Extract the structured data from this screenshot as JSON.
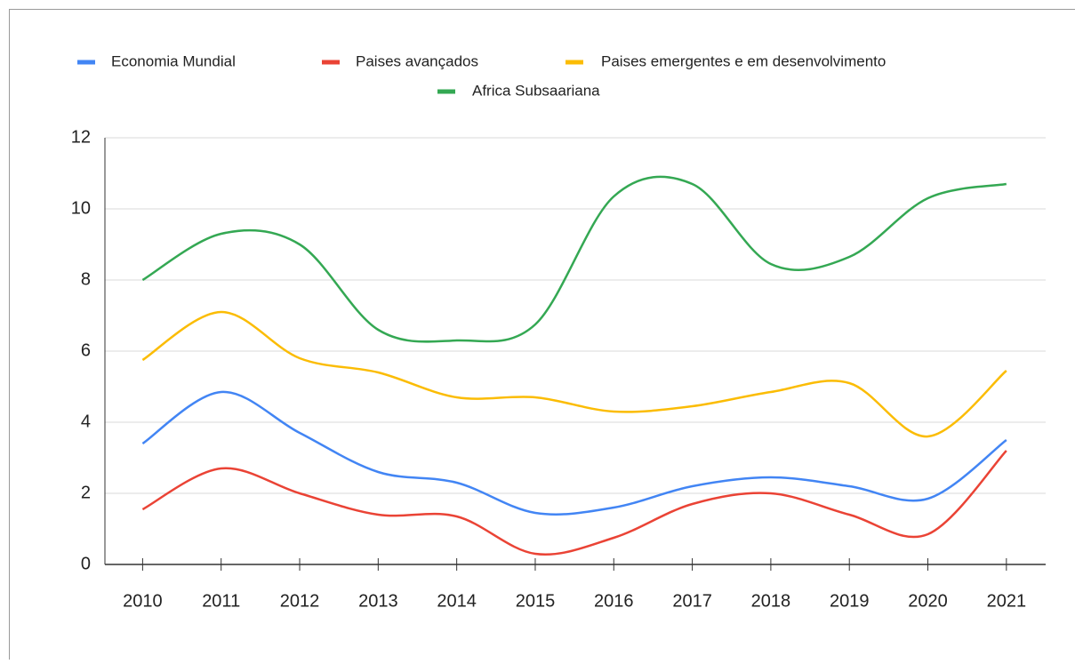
{
  "chart_data": {
    "type": "line",
    "x": [
      2010,
      2011,
      2012,
      2013,
      2014,
      2015,
      2016,
      2017,
      2018,
      2019,
      2020,
      2021
    ],
    "xlim": [
      2009.52,
      2021.5
    ],
    "xticks": [
      2010,
      2011,
      2012,
      2013,
      2014,
      2015,
      2016,
      2017,
      2018,
      2019,
      2020,
      2021
    ],
    "ylim": [
      0,
      12
    ],
    "yticks": [
      0,
      2,
      4,
      6,
      8,
      10,
      12
    ],
    "grid": true,
    "legend": "top",
    "series": [
      {
        "name": "Economia Mundial",
        "color": "#4285f4",
        "values": [
          3.4,
          4.85,
          3.7,
          2.6,
          2.3,
          1.45,
          1.6,
          2.2,
          2.45,
          2.2,
          1.85,
          3.5
        ]
      },
      {
        "name": "Paises avançados",
        "color": "#ea4335",
        "values": [
          1.55,
          2.7,
          2.0,
          1.4,
          1.35,
          0.3,
          0.75,
          1.7,
          2.0,
          1.4,
          0.85,
          3.2
        ]
      },
      {
        "name": "Paises emergentes e em desenvolvimento",
        "color": "#fbbc04",
        "values": [
          5.75,
          7.1,
          5.8,
          5.4,
          4.7,
          4.7,
          4.3,
          4.45,
          4.85,
          5.1,
          3.6,
          5.45
        ]
      },
      {
        "name": "Africa Subsaariana",
        "color": "#34a853",
        "values": [
          8.0,
          9.3,
          9.0,
          6.6,
          6.3,
          6.75,
          10.35,
          10.7,
          8.45,
          8.65,
          10.3,
          10.7
        ]
      }
    ]
  }
}
